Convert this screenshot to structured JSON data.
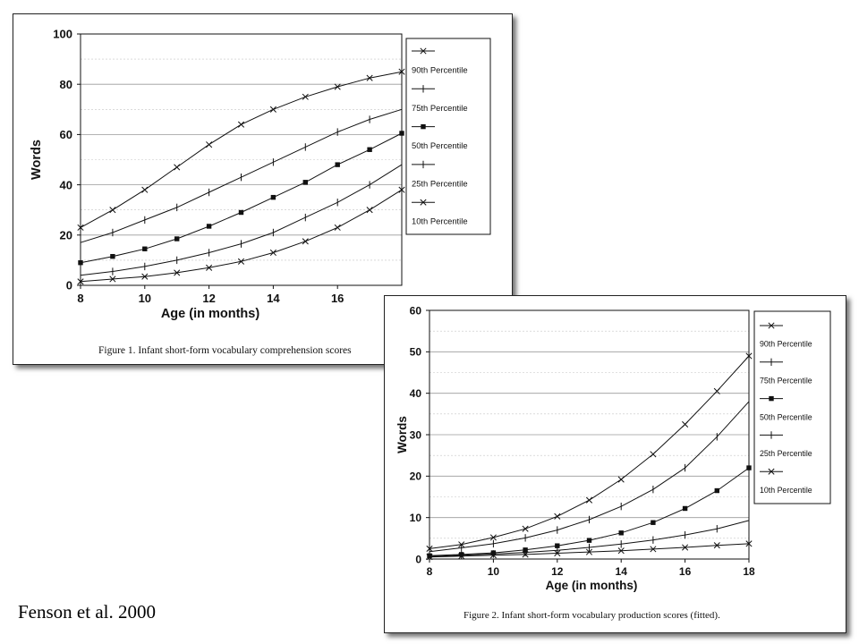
{
  "attribution": "Fenson et al. 2000",
  "colors": {
    "ink": "#111111",
    "grid": "#9a9a9a",
    "panel_border": "#222222"
  },
  "chart_data": [
    {
      "type": "line",
      "caption": "Figure 1. Infant short-form vocabulary comprehension scores",
      "xlabel": "Age (in months)",
      "ylabel": "Words",
      "xlim": [
        8,
        18
      ],
      "ylim": [
        0,
        100
      ],
      "xticks": [
        8,
        10,
        12,
        14,
        16
      ],
      "yticks": [
        0,
        20,
        40,
        60,
        80,
        100
      ],
      "grid": "horizontal",
      "legend_position": "right",
      "x": [
        8,
        9,
        10,
        11,
        12,
        13,
        14,
        15,
        16,
        17,
        18
      ],
      "series": [
        {
          "name": "90th Percentile",
          "marker": "x",
          "values": [
            23,
            30,
            38,
            47,
            56,
            64,
            70,
            75,
            79,
            82.5,
            85
          ]
        },
        {
          "name": "75th Percentile",
          "marker": "plus",
          "values": [
            17,
            21,
            26,
            31,
            37,
            43,
            49,
            55,
            61,
            66,
            70
          ]
        },
        {
          "name": "50th Percentile",
          "marker": "square",
          "values": [
            9,
            11.5,
            14.5,
            18.5,
            23.5,
            29,
            35,
            41,
            48,
            54,
            60.5
          ]
        },
        {
          "name": "25th Percentile",
          "marker": "plus",
          "values": [
            4,
            5.5,
            7.5,
            10,
            13,
            16.5,
            21,
            27,
            33,
            40,
            48
          ]
        },
        {
          "name": "10th Percentile",
          "marker": "x",
          "values": [
            1.5,
            2.5,
            3.5,
            5,
            7,
            9.5,
            13,
            17.5,
            23,
            30,
            38
          ]
        }
      ]
    },
    {
      "type": "line",
      "caption": "Figure 2. Infant short-form vocabulary production scores (fitted).",
      "xlabel": "Age (in months)",
      "ylabel": "Words",
      "xlim": [
        8,
        18
      ],
      "ylim": [
        0,
        60
      ],
      "xticks": [
        8,
        10,
        12,
        14,
        16,
        18
      ],
      "yticks": [
        0,
        10,
        20,
        30,
        40,
        50,
        60
      ],
      "grid": "horizontal",
      "legend_position": "right",
      "x": [
        8,
        9,
        10,
        11,
        12,
        13,
        14,
        15,
        16,
        17,
        18
      ],
      "series": [
        {
          "name": "90th Percentile",
          "marker": "x",
          "values": [
            2.5,
            3.5,
            5.2,
            7.3,
            10.3,
            14.2,
            19.2,
            25.3,
            32.5,
            40.5,
            49
          ]
        },
        {
          "name": "75th Percentile",
          "marker": "plus",
          "values": [
            1.8,
            2.7,
            3.7,
            5.1,
            7,
            9.5,
            12.7,
            16.8,
            22,
            29.5,
            38
          ]
        },
        {
          "name": "50th Percentile",
          "marker": "square",
          "values": [
            0.8,
            1.1,
            1.5,
            2.2,
            3.2,
            4.5,
            6.3,
            8.8,
            12.2,
            16.5,
            22
          ]
        },
        {
          "name": "25th Percentile",
          "marker": "plus",
          "values": [
            0.6,
            0.9,
            1.2,
            1.6,
            2.1,
            2.8,
            3.6,
            4.6,
            5.8,
            7.3,
            9.3
          ]
        },
        {
          "name": "10th Percentile",
          "marker": "x",
          "values": [
            0.5,
            0.7,
            0.9,
            1.1,
            1.4,
            1.7,
            2.0,
            2.4,
            2.8,
            3.3,
            3.7
          ]
        }
      ]
    }
  ]
}
